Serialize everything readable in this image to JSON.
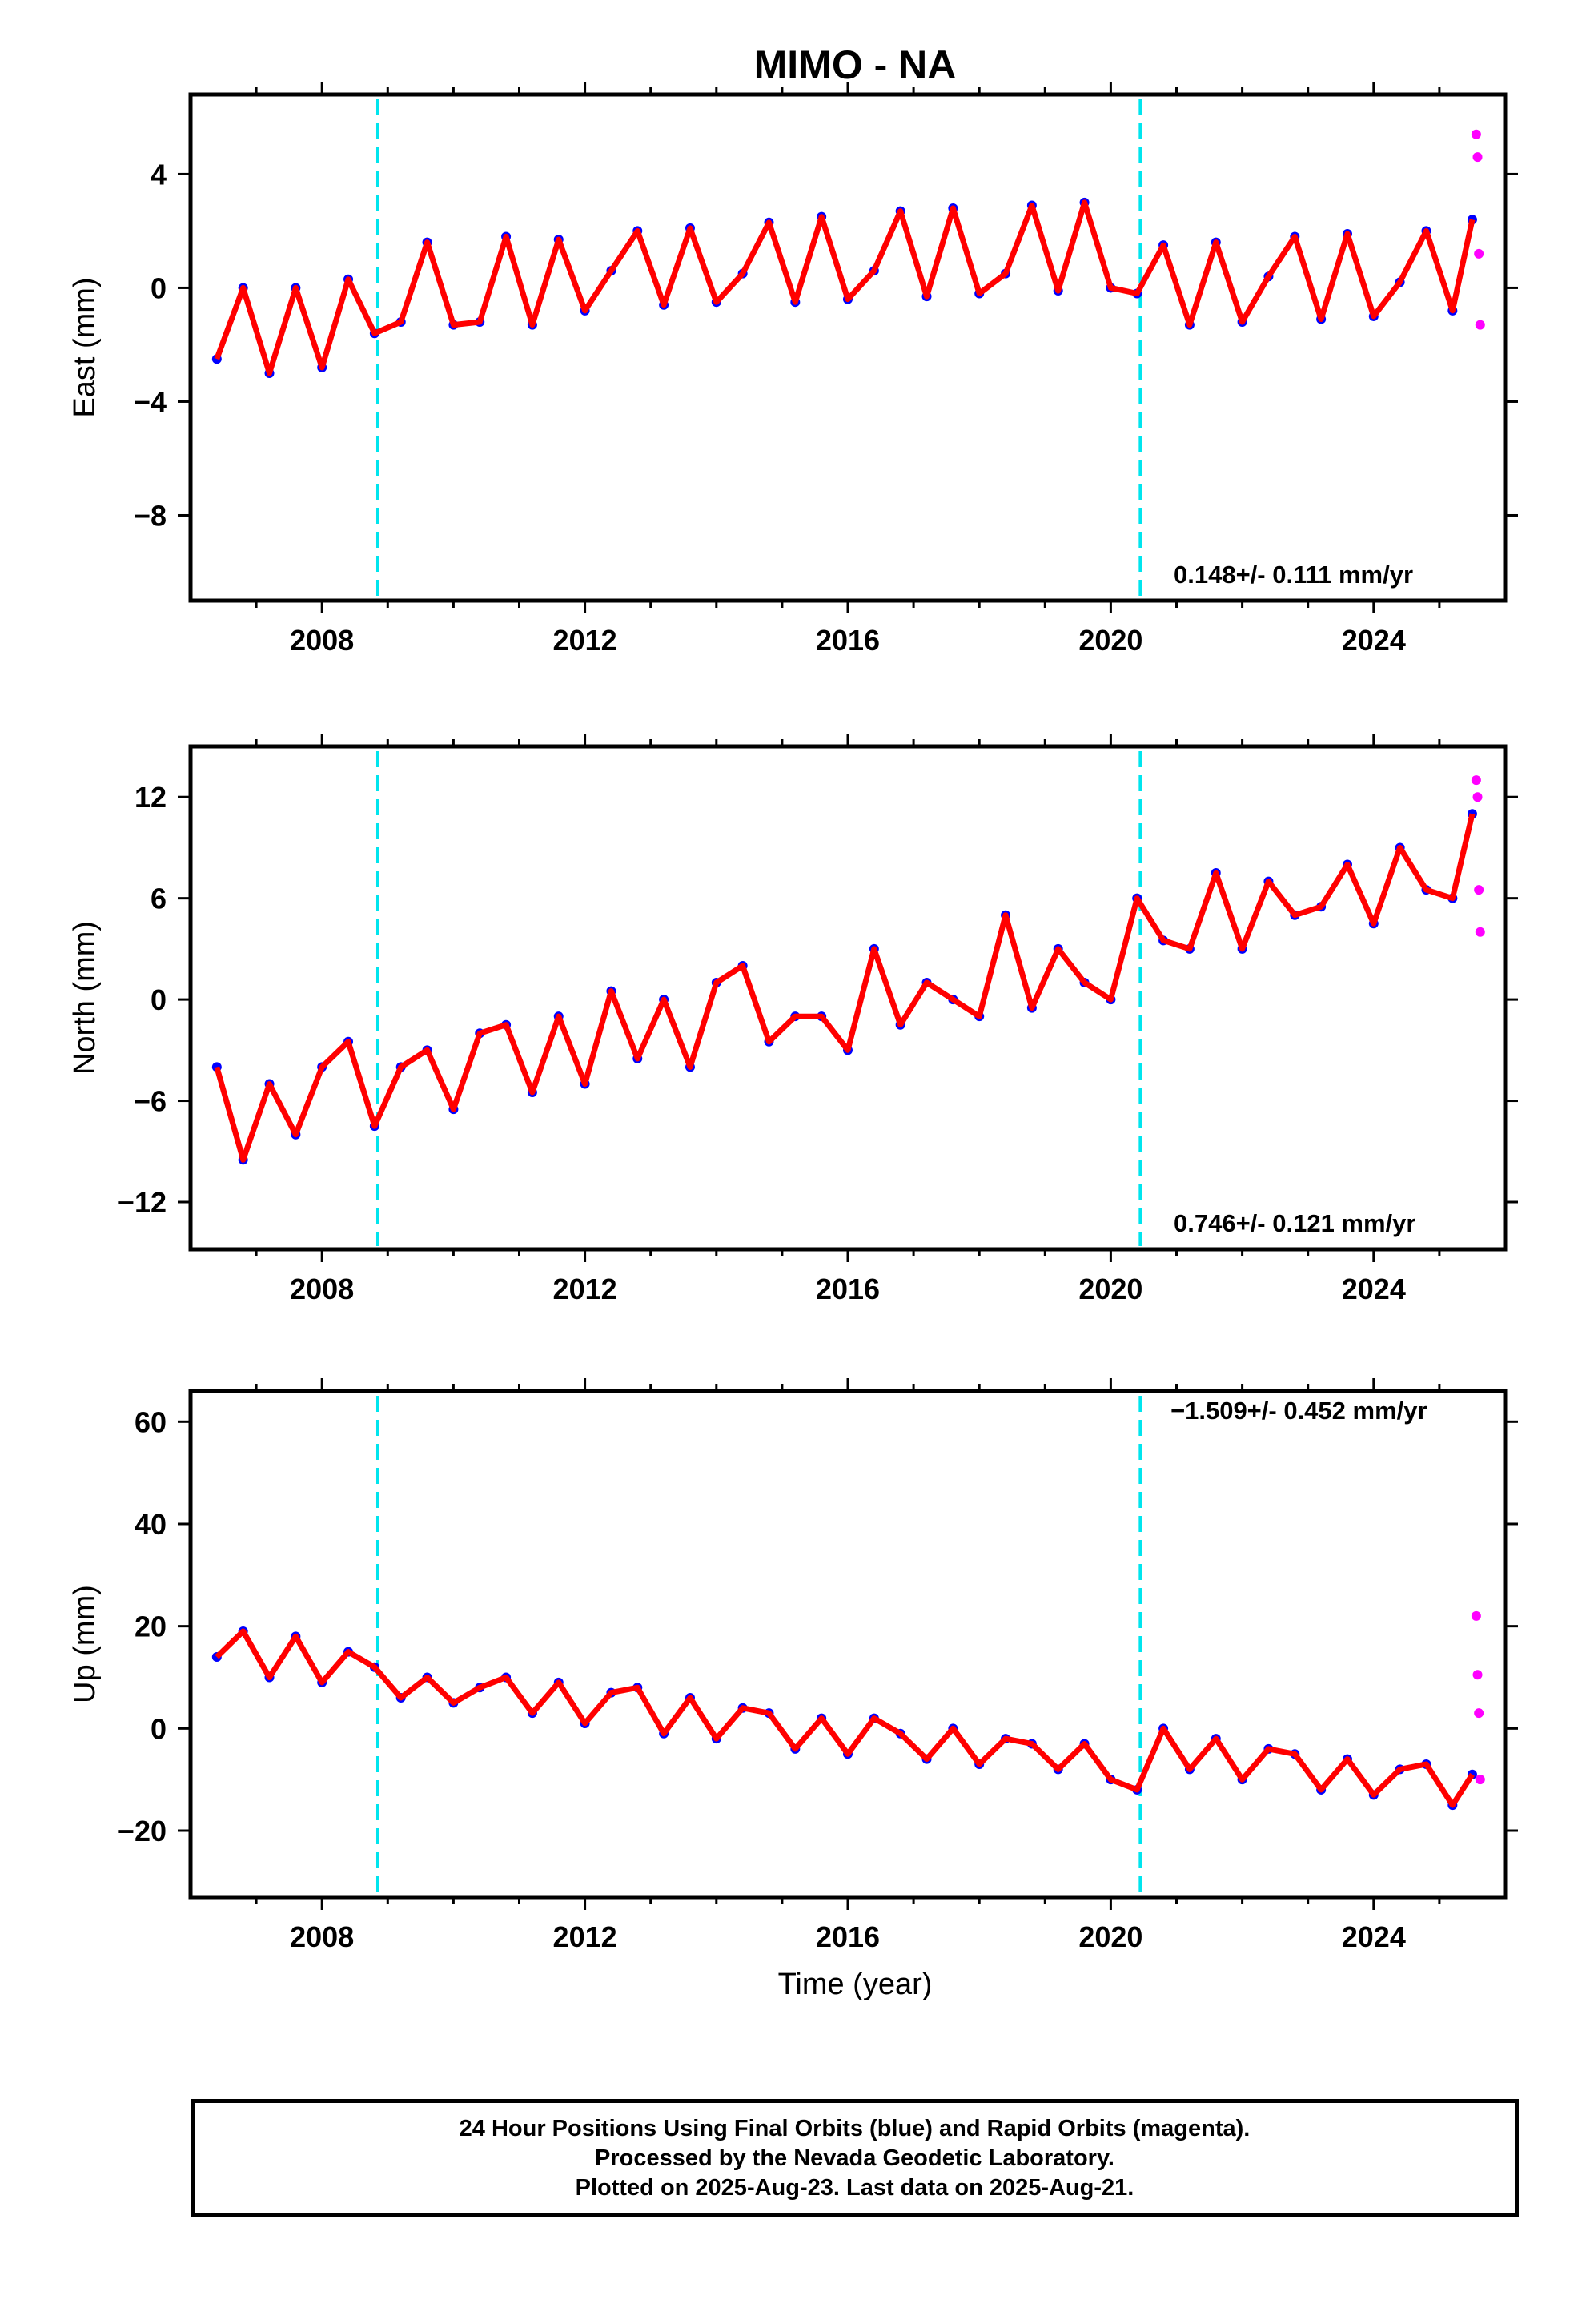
{
  "title": "MIMO - NA",
  "xlabel": "Time (year)",
  "notes": [
    "24 Hour Positions Using Final Orbits (blue) and Rapid Orbits (magenta).",
    "Processed by the Nevada Geodetic Laboratory.",
    "Plotted on 2025-Aug-23. Last data on 2025-Aug-21."
  ],
  "colors": {
    "final_orbits": "#0000ff",
    "rapid_orbits": "#ff00ff",
    "model_fit": "#ff0000",
    "events": "#00e5ee"
  },
  "chart_data": [
    {
      "type": "scatter",
      "ylabel": "East (mm)",
      "rate": "0.148+/- 0.111 mm/yr",
      "xlim": [
        2006.0,
        2026.0
      ],
      "ylim": [
        -11.0,
        6.8
      ],
      "xticks": [
        2008,
        2012,
        2016,
        2020,
        2024
      ],
      "yticks": [
        4,
        0,
        -4,
        -8
      ],
      "event_lines": [
        2008.85,
        2020.45
      ],
      "series": [
        {
          "x": [
            2006.4,
            2006.8,
            2007.2,
            2007.6,
            2008.0,
            2008.4,
            2008.8,
            2009.2,
            2009.6,
            2010.0,
            2010.4,
            2010.8,
            2011.2,
            2011.6,
            2012.0,
            2012.4,
            2012.8,
            2013.2,
            2013.6,
            2014.0,
            2014.4,
            2014.8,
            2015.2,
            2015.6,
            2016.0,
            2016.4,
            2016.8,
            2017.2,
            2017.6,
            2018.0,
            2018.4,
            2018.8,
            2019.2,
            2019.6,
            2020.0,
            2020.4,
            2020.8,
            2021.2,
            2021.6,
            2022.0,
            2022.4,
            2022.8,
            2023.2,
            2023.6,
            2024.0,
            2024.4,
            2024.8,
            2025.2,
            2025.5
          ],
          "y": [
            -2.5,
            0.0,
            -3.0,
            0.0,
            -2.8,
            0.3,
            -1.6,
            -1.2,
            1.6,
            -1.3,
            -1.2,
            1.8,
            -1.3,
            1.7,
            -0.8,
            0.6,
            2.0,
            -0.6,
            2.1,
            -0.5,
            0.5,
            2.3,
            -0.5,
            2.5,
            -0.4,
            0.6,
            2.7,
            -0.3,
            2.8,
            -0.2,
            0.5,
            2.9,
            -0.1,
            3.0,
            0.0,
            -0.2,
            1.5,
            -1.3,
            1.6,
            -1.2,
            0.4,
            1.8,
            -1.1,
            1.9,
            -1.0,
            0.2,
            2.0,
            -0.8,
            2.4
          ]
        }
      ],
      "rapid": {
        "x": [
          2025.56,
          2025.58,
          2025.6,
          2025.62
        ],
        "y": [
          5.4,
          4.6,
          1.2,
          -1.3
        ]
      }
    },
    {
      "type": "scatter",
      "ylabel": "North (mm)",
      "rate": "0.746+/- 0.121 mm/yr",
      "xlim": [
        2006.0,
        2026.0
      ],
      "ylim": [
        -14.8,
        15.0
      ],
      "xticks": [
        2008,
        2012,
        2016,
        2020,
        2024
      ],
      "yticks": [
        12,
        6,
        0,
        -6,
        -12
      ],
      "event_lines": [
        2008.85,
        2020.45
      ],
      "series": [
        {
          "x": [
            2006.4,
            2006.8,
            2007.2,
            2007.6,
            2008.0,
            2008.4,
            2008.8,
            2009.2,
            2009.6,
            2010.0,
            2010.4,
            2010.8,
            2011.2,
            2011.6,
            2012.0,
            2012.4,
            2012.8,
            2013.2,
            2013.6,
            2014.0,
            2014.4,
            2014.8,
            2015.2,
            2015.6,
            2016.0,
            2016.4,
            2016.8,
            2017.2,
            2017.6,
            2018.0,
            2018.4,
            2018.8,
            2019.2,
            2019.6,
            2020.0,
            2020.4,
            2020.8,
            2021.2,
            2021.6,
            2022.0,
            2022.4,
            2022.8,
            2023.2,
            2023.6,
            2024.0,
            2024.4,
            2024.8,
            2025.2,
            2025.5
          ],
          "y": [
            -4.0,
            -9.5,
            -5.0,
            -8.0,
            -4.0,
            -2.5,
            -7.5,
            -4.0,
            -3.0,
            -6.5,
            -2.0,
            -1.5,
            -5.5,
            -1.0,
            -5.0,
            0.5,
            -3.5,
            0.0,
            -4.0,
            1.0,
            2.0,
            -2.5,
            -1.0,
            -1.0,
            -3.0,
            3.0,
            -1.5,
            1.0,
            0.0,
            -1.0,
            5.0,
            -0.5,
            3.0,
            1.0,
            0.0,
            6.0,
            3.5,
            3.0,
            7.5,
            3.0,
            7.0,
            5.0,
            5.5,
            8.0,
            4.5,
            9.0,
            6.5,
            6.0,
            11.0
          ]
        }
      ],
      "rapid": {
        "x": [
          2025.56,
          2025.58,
          2025.6,
          2025.62
        ],
        "y": [
          13.0,
          12.0,
          6.5,
          4.0
        ]
      }
    },
    {
      "type": "scatter",
      "ylabel": "Up (mm)",
      "rate": "-1.509+/- 0.452 mm/yr",
      "xlim": [
        2006.0,
        2026.0
      ],
      "ylim": [
        -33.0,
        66.0
      ],
      "xticks": [
        2008,
        2012,
        2016,
        2020,
        2024
      ],
      "yticks": [
        60,
        40,
        20,
        0,
        -20
      ],
      "event_lines": [
        2008.85,
        2020.45
      ],
      "series": [
        {
          "x": [
            2006.4,
            2006.8,
            2007.2,
            2007.6,
            2008.0,
            2008.4,
            2008.8,
            2009.2,
            2009.6,
            2010.0,
            2010.4,
            2010.8,
            2011.2,
            2011.6,
            2012.0,
            2012.4,
            2012.8,
            2013.2,
            2013.6,
            2014.0,
            2014.4,
            2014.8,
            2015.2,
            2015.6,
            2016.0,
            2016.4,
            2016.8,
            2017.2,
            2017.6,
            2018.0,
            2018.4,
            2018.8,
            2019.2,
            2019.6,
            2020.0,
            2020.4,
            2020.8,
            2021.2,
            2021.6,
            2022.0,
            2022.4,
            2022.8,
            2023.2,
            2023.6,
            2024.0,
            2024.4,
            2024.8,
            2025.2,
            2025.5
          ],
          "y": [
            14.0,
            19.0,
            10.0,
            18.0,
            9.0,
            15.0,
            12.0,
            6.0,
            10.0,
            5.0,
            8.0,
            10.0,
            3.0,
            9.0,
            1.0,
            7.0,
            8.0,
            -1.0,
            6.0,
            -2.0,
            4.0,
            3.0,
            -4.0,
            2.0,
            -5.0,
            2.0,
            -1.0,
            -6.0,
            0.0,
            -7.0,
            -2.0,
            -3.0,
            -8.0,
            -3.0,
            -10.0,
            -12.0,
            0.0,
            -8.0,
            -2.0,
            -10.0,
            -4.0,
            -5.0,
            -12.0,
            -6.0,
            -13.0,
            -8.0,
            -7.0,
            -15.0,
            -9.0
          ]
        }
      ],
      "rapid": {
        "x": [
          2025.56,
          2025.58,
          2025.6,
          2025.62
        ],
        "y": [
          22.0,
          10.5,
          3.0,
          -10.0
        ]
      }
    }
  ]
}
